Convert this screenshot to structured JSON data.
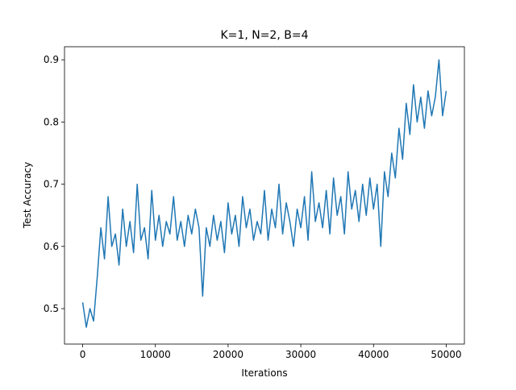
{
  "chart_data": {
    "type": "line",
    "title": "K=1, N=2, B=4",
    "x_label": "Iterations",
    "y_label": "Test Accuracy",
    "x": [
      0,
      500,
      1000,
      1500,
      2000,
      2500,
      3000,
      3500,
      4000,
      4500,
      5000,
      5500,
      6000,
      6500,
      7000,
      7500,
      8000,
      8500,
      9000,
      9500,
      10000,
      10500,
      11000,
      11500,
      12000,
      12500,
      13000,
      13500,
      14000,
      14500,
      15000,
      15500,
      16000,
      16500,
      17000,
      17500,
      18000,
      18500,
      19000,
      19500,
      20000,
      20500,
      21000,
      21500,
      22000,
      22500,
      23000,
      23500,
      24000,
      24500,
      25000,
      25500,
      26000,
      26500,
      27000,
      27500,
      28000,
      28500,
      29000,
      29500,
      30000,
      30500,
      31000,
      31500,
      32000,
      32500,
      33000,
      33500,
      34000,
      34500,
      35000,
      35500,
      36000,
      36500,
      37000,
      37500,
      38000,
      38500,
      39000,
      39500,
      40000,
      40500,
      41000,
      41500,
      42000,
      42500,
      43000,
      43500,
      44000,
      44500,
      45000,
      45500,
      46000,
      46500,
      47000,
      47500,
      48000,
      48500,
      49000,
      49500,
      50000
    ],
    "series": [
      {
        "name": "Test Accuracy",
        "color": "#1f77b4",
        "values": [
          0.51,
          0.47,
          0.5,
          0.48,
          0.55,
          0.63,
          0.58,
          0.68,
          0.6,
          0.62,
          0.57,
          0.66,
          0.6,
          0.64,
          0.59,
          0.7,
          0.61,
          0.63,
          0.58,
          0.69,
          0.61,
          0.65,
          0.6,
          0.64,
          0.62,
          0.68,
          0.61,
          0.64,
          0.6,
          0.65,
          0.62,
          0.66,
          0.63,
          0.52,
          0.63,
          0.6,
          0.65,
          0.61,
          0.64,
          0.59,
          0.67,
          0.62,
          0.65,
          0.6,
          0.68,
          0.63,
          0.66,
          0.61,
          0.64,
          0.62,
          0.69,
          0.61,
          0.66,
          0.63,
          0.7,
          0.62,
          0.67,
          0.64,
          0.6,
          0.66,
          0.63,
          0.68,
          0.61,
          0.72,
          0.64,
          0.67,
          0.63,
          0.69,
          0.62,
          0.71,
          0.65,
          0.68,
          0.62,
          0.72,
          0.66,
          0.69,
          0.64,
          0.7,
          0.65,
          0.71,
          0.66,
          0.7,
          0.6,
          0.72,
          0.68,
          0.75,
          0.71,
          0.79,
          0.74,
          0.83,
          0.78,
          0.86,
          0.8,
          0.84,
          0.79,
          0.85,
          0.81,
          0.84,
          0.9,
          0.81,
          0.85
        ]
      }
    ],
    "xlim": [
      -2500,
      52500
    ],
    "ylim": [
      0.443,
      0.921
    ],
    "xticks": [
      0,
      10000,
      20000,
      30000,
      40000,
      50000
    ],
    "yticks": [
      0.5,
      0.6,
      0.7,
      0.8,
      0.9
    ]
  }
}
